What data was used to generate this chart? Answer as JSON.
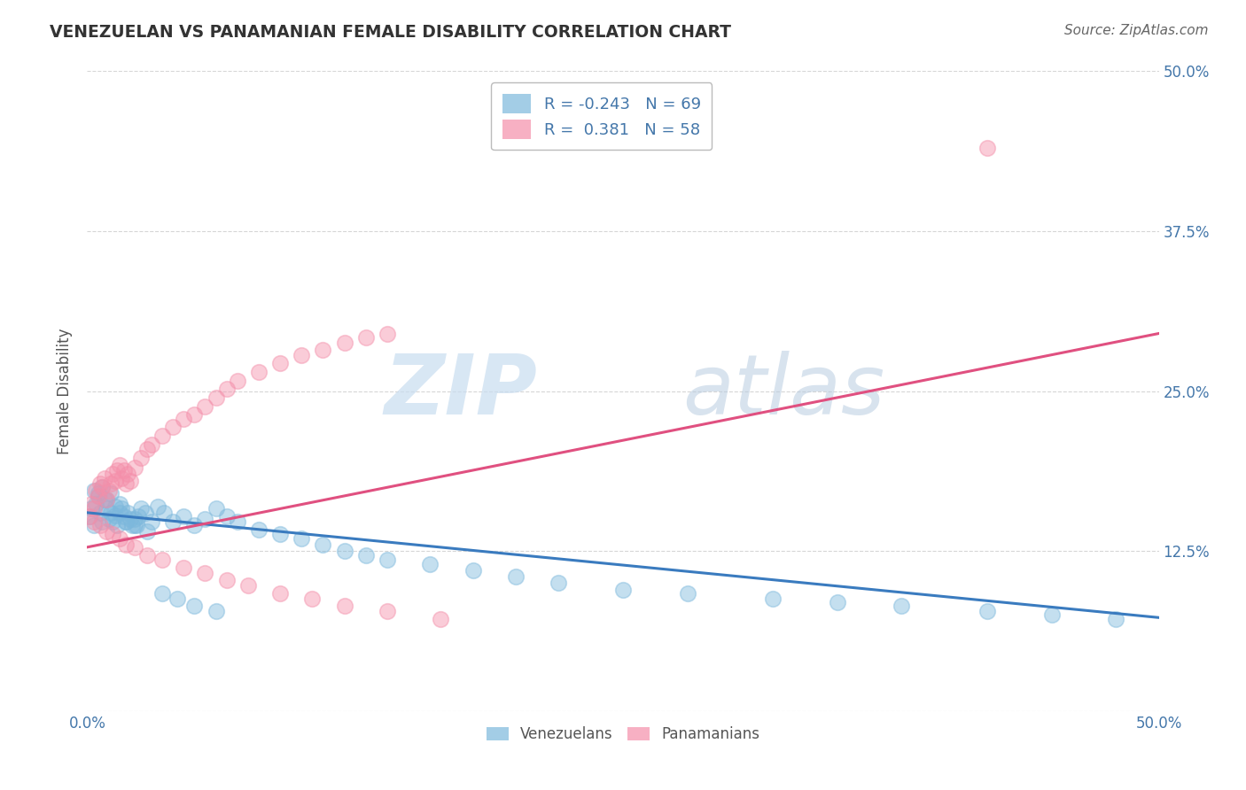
{
  "title": "VENEZUELAN VS PANAMANIAN FEMALE DISABILITY CORRELATION CHART",
  "source": "Source: ZipAtlas.com",
  "ylabel": "Female Disability",
  "xlim": [
    0.0,
    0.5
  ],
  "ylim": [
    0.0,
    0.5
  ],
  "xtick_vals": [
    0.0,
    0.125,
    0.25,
    0.375,
    0.5
  ],
  "xtick_labels": [
    "0.0%",
    "",
    "",
    "",
    "50.0%"
  ],
  "right_ytick_vals": [
    0.0,
    0.125,
    0.25,
    0.375,
    0.5
  ],
  "right_ytick_labels": [
    "",
    "12.5%",
    "25.0%",
    "37.5%",
    "50.0%"
  ],
  "legend_title_blue": "Venezuelans",
  "legend_title_pink": "Panamanians",
  "venezuelan_color": "#7db8dc",
  "panamanian_color": "#f48faa",
  "blue_line_color": "#3a7bbf",
  "pink_line_color": "#e05080",
  "background_color": "#ffffff",
  "grid_color": "#cccccc",
  "blue_line": {
    "x_start": 0.0,
    "x_end": 0.5,
    "y_start": 0.155,
    "y_end": 0.073
  },
  "pink_line": {
    "x_start": 0.0,
    "x_end": 0.5,
    "y_start": 0.128,
    "y_end": 0.295
  },
  "venezuelan_x": [
    0.001,
    0.002,
    0.003,
    0.004,
    0.005,
    0.006,
    0.007,
    0.008,
    0.009,
    0.01,
    0.011,
    0.012,
    0.013,
    0.014,
    0.015,
    0.016,
    0.017,
    0.018,
    0.019,
    0.02,
    0.021,
    0.022,
    0.023,
    0.024,
    0.025,
    0.027,
    0.03,
    0.033,
    0.036,
    0.04,
    0.045,
    0.05,
    0.055,
    0.06,
    0.065,
    0.07,
    0.08,
    0.09,
    0.1,
    0.11,
    0.12,
    0.13,
    0.14,
    0.16,
    0.18,
    0.2,
    0.22,
    0.25,
    0.28,
    0.32,
    0.35,
    0.38,
    0.42,
    0.45,
    0.48,
    0.003,
    0.005,
    0.007,
    0.009,
    0.011,
    0.013,
    0.015,
    0.018,
    0.022,
    0.028,
    0.035,
    0.042,
    0.05,
    0.06
  ],
  "venezuelan_y": [
    0.152,
    0.158,
    0.145,
    0.162,
    0.17,
    0.155,
    0.148,
    0.165,
    0.158,
    0.15,
    0.155,
    0.148,
    0.153,
    0.145,
    0.162,
    0.158,
    0.152,
    0.148,
    0.155,
    0.15,
    0.145,
    0.15,
    0.145,
    0.152,
    0.158,
    0.155,
    0.148,
    0.16,
    0.155,
    0.148,
    0.152,
    0.145,
    0.15,
    0.158,
    0.152,
    0.148,
    0.142,
    0.138,
    0.135,
    0.13,
    0.125,
    0.122,
    0.118,
    0.115,
    0.11,
    0.105,
    0.1,
    0.095,
    0.092,
    0.088,
    0.085,
    0.082,
    0.078,
    0.075,
    0.072,
    0.172,
    0.168,
    0.175,
    0.165,
    0.17,
    0.16,
    0.155,
    0.148,
    0.145,
    0.14,
    0.092,
    0.088,
    0.082,
    0.078
  ],
  "panamanian_x": [
    0.001,
    0.002,
    0.003,
    0.004,
    0.005,
    0.006,
    0.007,
    0.008,
    0.009,
    0.01,
    0.011,
    0.012,
    0.013,
    0.014,
    0.015,
    0.016,
    0.017,
    0.018,
    0.019,
    0.02,
    0.022,
    0.025,
    0.028,
    0.03,
    0.035,
    0.04,
    0.045,
    0.05,
    0.055,
    0.06,
    0.065,
    0.07,
    0.08,
    0.09,
    0.1,
    0.11,
    0.12,
    0.13,
    0.14,
    0.003,
    0.006,
    0.009,
    0.012,
    0.015,
    0.018,
    0.022,
    0.028,
    0.035,
    0.045,
    0.055,
    0.065,
    0.075,
    0.09,
    0.105,
    0.12,
    0.14,
    0.165,
    0.42
  ],
  "panamanian_y": [
    0.152,
    0.162,
    0.158,
    0.172,
    0.168,
    0.178,
    0.175,
    0.182,
    0.165,
    0.172,
    0.178,
    0.185,
    0.18,
    0.188,
    0.192,
    0.182,
    0.188,
    0.178,
    0.185,
    0.18,
    0.19,
    0.198,
    0.205,
    0.208,
    0.215,
    0.222,
    0.228,
    0.232,
    0.238,
    0.245,
    0.252,
    0.258,
    0.265,
    0.272,
    0.278,
    0.282,
    0.288,
    0.292,
    0.295,
    0.148,
    0.145,
    0.14,
    0.138,
    0.135,
    0.13,
    0.128,
    0.122,
    0.118,
    0.112,
    0.108,
    0.102,
    0.098,
    0.092,
    0.088,
    0.082,
    0.078,
    0.072,
    0.44
  ]
}
